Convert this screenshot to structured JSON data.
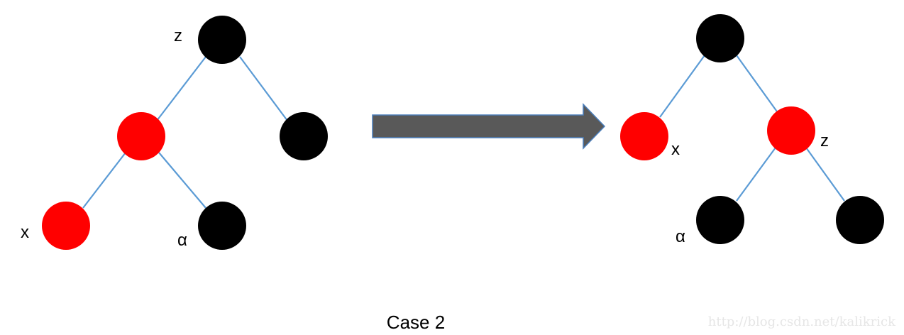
{
  "colors": {
    "red_node": "#ff0000",
    "black_node": "#000000",
    "edge": "#5b9bd5",
    "arrow": "#595959",
    "arrow_border": "#4a7ebb"
  },
  "left_tree": {
    "nodes": [
      {
        "id": "z",
        "color": "black",
        "label": "z"
      },
      {
        "id": "x_parent",
        "color": "red",
        "label": ""
      },
      {
        "id": "uncle",
        "color": "black",
        "label": ""
      },
      {
        "id": "x",
        "color": "red",
        "label": "x"
      },
      {
        "id": "alpha",
        "color": "black",
        "label": "α"
      }
    ],
    "edges": [
      [
        "z",
        "x_parent"
      ],
      [
        "z",
        "uncle"
      ],
      [
        "x_parent",
        "x"
      ],
      [
        "x_parent",
        "alpha"
      ]
    ]
  },
  "right_tree": {
    "nodes": [
      {
        "id": "root",
        "color": "black",
        "label": ""
      },
      {
        "id": "x",
        "color": "red",
        "label": "x"
      },
      {
        "id": "z",
        "color": "red",
        "label": "z"
      },
      {
        "id": "alpha",
        "color": "black",
        "label": "α"
      },
      {
        "id": "uncle",
        "color": "black",
        "label": ""
      }
    ],
    "edges": [
      [
        "root",
        "x"
      ],
      [
        "root",
        "z"
      ],
      [
        "z",
        "alpha"
      ],
      [
        "z",
        "uncle"
      ]
    ]
  },
  "caption": "Case 2",
  "watermark": "http://blog.csdn.net/kalikrick",
  "icons": {
    "transform_arrow": "right-arrow-icon"
  }
}
